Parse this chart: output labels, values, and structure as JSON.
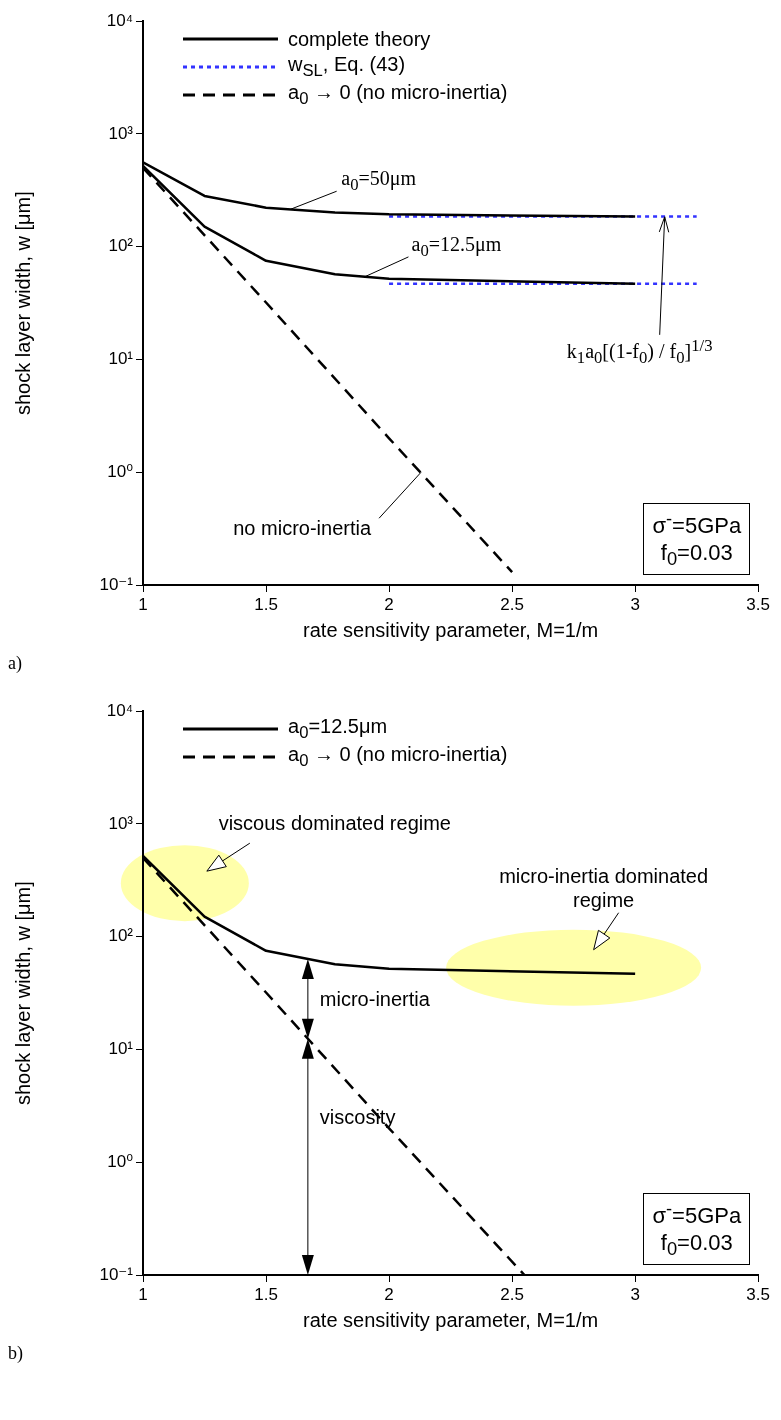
{
  "chart_data": [
    {
      "type": "line",
      "xlabel": "rate sensitivity parameter, M=1/m",
      "ylabel": "shock layer width, w [μm]",
      "log": "y",
      "xlim": [
        1,
        3.5
      ],
      "ylim": [
        0.1,
        10000
      ],
      "xticks": [
        1,
        1.5,
        2,
        2.5,
        3,
        3.5
      ],
      "yticks": [
        {
          "value": 0.1,
          "label": "10⁻¹"
        },
        {
          "value": 1,
          "label": "10⁰"
        },
        {
          "value": 10,
          "label": "10¹"
        },
        {
          "value": 100,
          "label": "10²"
        },
        {
          "value": 1000,
          "label": "10³"
        },
        {
          "value": 10000,
          "label": "10⁴"
        }
      ],
      "grid": false,
      "legend": "top left",
      "marker": "none",
      "series": [
        {
          "name": "complete theory",
          "color": "#000000",
          "line_style": "solid",
          "x": [
            1,
            1.25,
            1.5,
            1.78,
            2,
            3
          ],
          "values": [
            560,
            282,
            222,
            201,
            194,
            185
          ]
        },
        {
          "color": "#000000",
          "line_style": "solid",
          "x": [
            1,
            1.25,
            1.5,
            1.78,
            2,
            3
          ],
          "values": [
            520,
            151,
            75,
            57,
            52,
            47
          ]
        },
        {
          "name": "w$_{SL}$, Eq. (43)",
          "color": "#3333ff",
          "line_style": "dotted",
          "x": [
            2,
            3.25
          ],
          "values": [
            185,
            185
          ]
        },
        {
          "color": "#3333ff",
          "line_style": "dotted",
          "x": [
            2,
            3.25
          ],
          "values": [
            47,
            47
          ]
        },
        {
          "name": "a$_{0}$ → 0 (no micro-inertia)",
          "color": "#000000",
          "line_style": "dashed",
          "x": [
            1,
            1.5,
            2,
            2.5
          ],
          "values": [
            500,
            32,
            2,
            0.13
          ]
        }
      ],
      "annotations": [
        "a)",
        "σ$^{-}$=5GPa",
        "f$_{0}$=0.03",
        {
          "text": "a$_{0}$=50μm",
          "x": 1.6,
          "y": 215
        },
        {
          "text": "a$_{0}$=12.5μm",
          "x": 1.9,
          "y": 54
        },
        "k$_{1}$a$_{0}$[(1-f$_{0}$) / f$_{0}$]$^{1/3}$",
        {
          "text": "no micro-inertia",
          "x": 2.13,
          "y": 1
        }
      ]
    },
    {
      "type": "line",
      "xlabel": "rate sensitivity parameter, M=1/m",
      "ylabel": "shock layer width, w [μm]",
      "log": "y",
      "xlim": [
        1,
        3.5
      ],
      "ylim": [
        0.1,
        10000
      ],
      "xticks": [
        1,
        1.5,
        2,
        2.5,
        3,
        3.5
      ],
      "yticks": [
        {
          "value": 0.1,
          "label": "10⁻¹"
        },
        {
          "value": 1,
          "label": "10⁰"
        },
        {
          "value": 10,
          "label": "10¹"
        },
        {
          "value": 100,
          "label": "10²"
        },
        {
          "value": 1000,
          "label": "10³"
        },
        {
          "value": 10000,
          "label": "10⁴"
        }
      ],
      "grid": false,
      "legend": "top left",
      "marker": "none",
      "series": [
        {
          "name": "a$_{0}$=12.5μm",
          "color": "#000000",
          "line_style": "solid",
          "x": [
            1,
            1.25,
            1.5,
            1.78,
            2,
            3
          ],
          "values": [
            520,
            151,
            75,
            57,
            52,
            47
          ]
        },
        {
          "name": "a$_{0}$ → 0 (no micro-inertia)",
          "color": "#000000",
          "line_style": "dashed",
          "x": [
            1,
            1.5,
            2,
            2.55
          ],
          "values": [
            500,
            32,
            2,
            0.1
          ]
        }
      ],
      "annotations": [
        "b)",
        "σ$^{-}$=5GPa",
        "f$_{0}$=0.03",
        "viscous dominated regime",
        "micro-inertia dominated regime",
        "micro-inertia",
        "viscosity"
      ]
    }
  ]
}
